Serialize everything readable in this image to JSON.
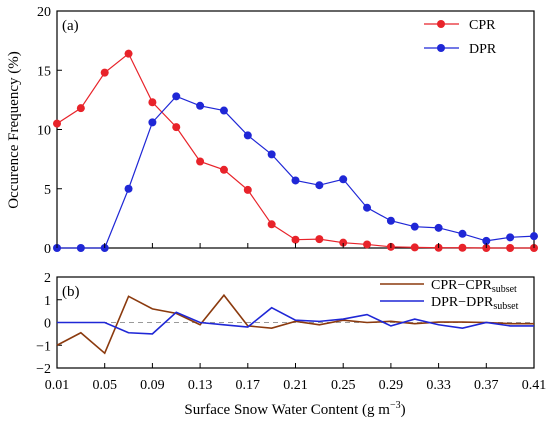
{
  "chart_data": [
    {
      "type": "line",
      "panel_label": "(a)",
      "ylabel": "Occurence Frequency (%)",
      "ylim": [
        0,
        20
      ],
      "yticks": [
        "0",
        "5",
        "10",
        "15",
        "20"
      ],
      "x": [
        0.01,
        0.03,
        0.05,
        0.07,
        0.09,
        0.11,
        0.13,
        0.15,
        0.17,
        0.19,
        0.21,
        0.23,
        0.25,
        0.27,
        0.29,
        0.31,
        0.33,
        0.35,
        0.37,
        0.39,
        0.41
      ],
      "legend_position": "top-right",
      "series": [
        {
          "name": "CPR",
          "color": "#e8232a",
          "values": [
            10.5,
            11.8,
            14.8,
            16.4,
            12.3,
            10.2,
            7.3,
            6.6,
            4.9,
            2.0,
            0.7,
            0.75,
            0.45,
            0.3,
            0.1,
            0.05,
            0.02,
            0.02,
            0.0,
            0.0,
            0.0
          ]
        },
        {
          "name": "DPR",
          "color": "#1f27d6",
          "values": [
            0.0,
            0.0,
            0.0,
            5.0,
            10.6,
            12.8,
            12.0,
            11.6,
            9.5,
            7.9,
            5.7,
            5.3,
            5.8,
            3.4,
            2.3,
            1.8,
            1.7,
            1.2,
            0.6,
            0.9,
            1.0
          ]
        }
      ]
    },
    {
      "type": "line",
      "panel_label": "(b)",
      "ylim": [
        -2,
        2
      ],
      "yticks": [
        "−2",
        "−1",
        "0",
        "1",
        "2"
      ],
      "x": [
        0.01,
        0.03,
        0.05,
        0.07,
        0.09,
        0.11,
        0.13,
        0.15,
        0.17,
        0.19,
        0.21,
        0.23,
        0.25,
        0.27,
        0.29,
        0.31,
        0.33,
        0.35,
        0.37,
        0.39,
        0.41
      ],
      "reference_line": 0,
      "legend_position": "top-right",
      "series": [
        {
          "name_main": "CPR−CPR",
          "name_sub": "subset",
          "color": "#8b3a0e",
          "values": [
            -1.0,
            -0.45,
            -1.35,
            1.15,
            0.6,
            0.4,
            -0.1,
            1.2,
            -0.15,
            -0.25,
            0.05,
            -0.1,
            0.1,
            0.0,
            0.05,
            -0.05,
            0.02,
            0.02,
            0.0,
            -0.05,
            -0.05
          ]
        },
        {
          "name_main": "DPR−DPR",
          "name_sub": "subset",
          "color": "#1f27d6",
          "values": [
            0.0,
            0.0,
            0.0,
            -0.45,
            -0.5,
            0.45,
            0.0,
            -0.1,
            -0.2,
            0.65,
            0.1,
            0.05,
            0.15,
            0.35,
            -0.15,
            0.15,
            -0.1,
            -0.25,
            0.0,
            -0.15,
            -0.15
          ]
        }
      ]
    }
  ],
  "shared_x": {
    "xlabel": "Surface Snow Water Content (g m",
    "xlabel_sup": "−3",
    "xlabel_end": ")",
    "xticks": [
      "0.01",
      "0.05",
      "0.09",
      "0.13",
      "0.17",
      "0.21",
      "0.25",
      "0.29",
      "0.33",
      "0.37",
      "0.41"
    ],
    "xlim": [
      0.01,
      0.41
    ]
  }
}
